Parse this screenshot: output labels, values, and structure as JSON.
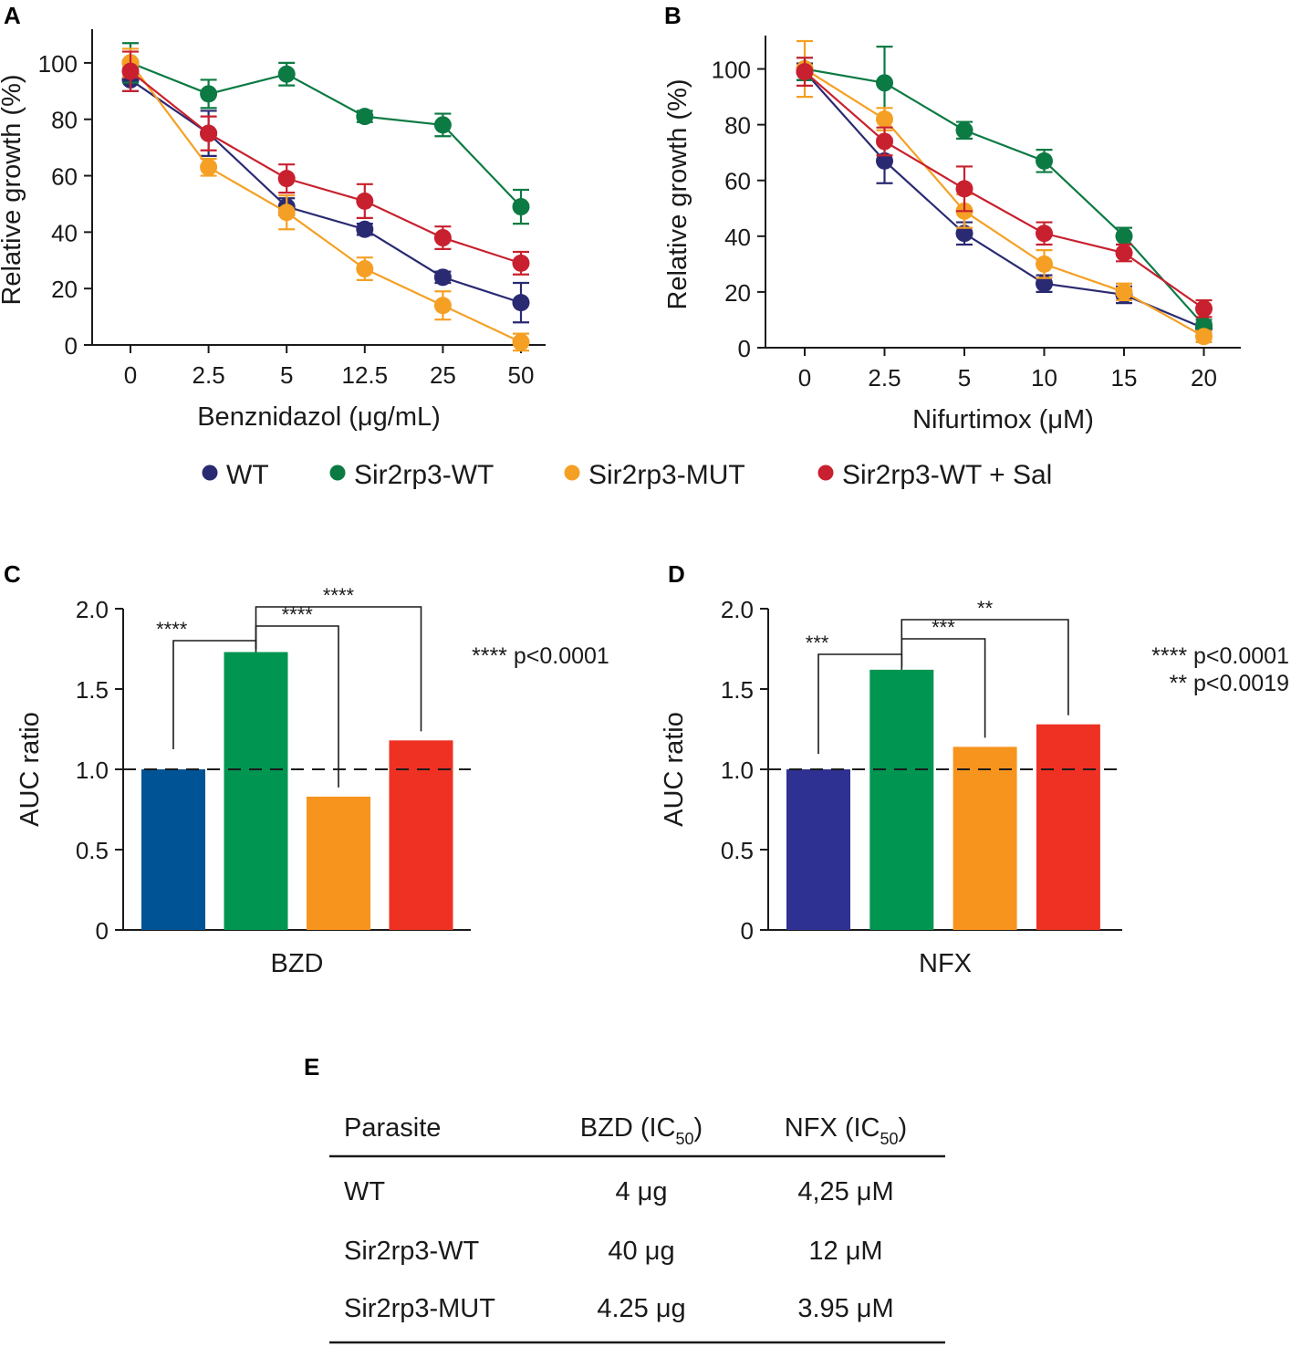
{
  "panel_labels": {
    "A": "A",
    "B": "B",
    "C": "C",
    "D": "D",
    "E": "E"
  },
  "colors": {
    "WT": "#2a2a72",
    "Sir2rp3-WT": "#0c7a43",
    "Sir2rp3-MUT": "#f5a024",
    "Sir2rp3-WT + Sal": "#c8202e"
  },
  "legend": [
    "WT",
    "Sir2rp3-WT",
    "Sir2rp3-MUT",
    "Sir2rp3-WT + Sal"
  ],
  "chart_data": [
    {
      "panel": "A",
      "type": "line",
      "xlabel": "Benznidazol (μg/mL)",
      "ylabel": "Relative growth (%)",
      "categories": [
        "0",
        "2.5",
        "5",
        "12.5",
        "25",
        "50"
      ],
      "ylim": [
        0,
        110
      ],
      "yticks": [
        "0",
        "20",
        "40",
        "60",
        "80",
        "100"
      ],
      "series": [
        {
          "name": "WT",
          "values": [
            94,
            75,
            49,
            41,
            24,
            15
          ],
          "errors": [
            4,
            8,
            3,
            2,
            2,
            7
          ]
        },
        {
          "name": "Sir2rp3-WT",
          "values": [
            100,
            89,
            96,
            81,
            78,
            49
          ],
          "errors": [
            7,
            5,
            4,
            2,
            4,
            6
          ]
        },
        {
          "name": "Sir2rp3-MUT",
          "values": [
            100,
            63,
            47,
            27,
            14,
            1
          ],
          "errors": [
            5,
            3,
            6,
            4,
            5,
            3
          ]
        },
        {
          "name": "Sir2rp3-WT + Sal",
          "values": [
            97,
            75,
            59,
            51,
            38,
            29
          ],
          "errors": [
            7,
            6,
            5,
            6,
            4,
            4
          ]
        }
      ]
    },
    {
      "panel": "B",
      "type": "line",
      "xlabel": "Nifurtimox (μM)",
      "ylabel": "Relative growth (%)",
      "categories": [
        "0",
        "2.5",
        "5",
        "10",
        "15",
        "20"
      ],
      "ylim": [
        0,
        110
      ],
      "yticks": [
        "0",
        "20",
        "40",
        "60",
        "80",
        "100"
      ],
      "series": [
        {
          "name": "WT",
          "values": [
            99,
            67,
            41,
            23,
            19,
            7
          ],
          "errors": [
            3,
            8,
            4,
            3,
            3,
            2
          ]
        },
        {
          "name": "Sir2rp3-WT",
          "values": [
            100,
            95,
            78,
            67,
            40,
            8
          ],
          "errors": [
            4,
            13,
            3,
            4,
            3,
            2
          ]
        },
        {
          "name": "Sir2rp3-MUT",
          "values": [
            100,
            82,
            49,
            30,
            20,
            4
          ],
          "errors": [
            10,
            4,
            6,
            5,
            3,
            2
          ]
        },
        {
          "name": "Sir2rp3-WT + Sal",
          "values": [
            99,
            74,
            57,
            41,
            34,
            14
          ],
          "errors": [
            5,
            5,
            8,
            4,
            3,
            3
          ]
        }
      ]
    },
    {
      "panel": "C",
      "type": "bar",
      "xlabel": "BZD",
      "ylabel": "AUC ratio",
      "categories": [
        "WT",
        "Sir2rp3-WT",
        "Sir2rp3-MUT",
        "Sir2rp3-WT + Sal"
      ],
      "values": [
        1.0,
        1.73,
        0.83,
        1.18
      ],
      "bar_colors": [
        "#005394",
        "#009551",
        "#f7941d",
        "#ee3123"
      ],
      "reference_line": 1.0,
      "ylim": [
        0,
        2.0
      ],
      "yticks": [
        "0",
        "0.5",
        "1.0",
        "1.5",
        "2.0"
      ],
      "comparisons": [
        {
          "between": [
            "WT",
            "Sir2rp3-WT"
          ],
          "label": "****"
        },
        {
          "between": [
            "Sir2rp3-WT",
            "Sir2rp3-MUT"
          ],
          "label": "****"
        },
        {
          "between": [
            "Sir2rp3-WT",
            "Sir2rp3-WT + Sal"
          ],
          "label": "****"
        }
      ],
      "notes": [
        "**** p<0.0001"
      ]
    },
    {
      "panel": "D",
      "type": "bar",
      "xlabel": "NFX",
      "ylabel": "AUC ratio",
      "categories": [
        "WT",
        "Sir2rp3-WT",
        "Sir2rp3-MUT",
        "Sir2rp3-WT + Sal"
      ],
      "values": [
        1.0,
        1.62,
        1.14,
        1.28
      ],
      "bar_colors": [
        "#2e3192",
        "#009551",
        "#f7941d",
        "#ee3123"
      ],
      "reference_line": 1.0,
      "ylim": [
        0,
        2.0
      ],
      "yticks": [
        "0",
        "0.5",
        "1.0",
        "1.5",
        "2.0"
      ],
      "comparisons": [
        {
          "between": [
            "WT",
            "Sir2rp3-WT"
          ],
          "label": "***"
        },
        {
          "between": [
            "Sir2rp3-WT",
            "Sir2rp3-MUT"
          ],
          "label": "***"
        },
        {
          "between": [
            "Sir2rp3-WT",
            "Sir2rp3-WT + Sal"
          ],
          "label": "**"
        }
      ],
      "notes": [
        "**** p<0.0001",
        "** p<0.0019"
      ]
    },
    {
      "panel": "E",
      "type": "table",
      "columns": [
        {
          "text": "Parasite",
          "sub": ""
        },
        {
          "text": "BZD (IC",
          "sub": "50",
          "close": ")"
        },
        {
          "text": "NFX (IC",
          "sub": "50",
          "close": ")"
        }
      ],
      "rows": [
        [
          "WT",
          "4 μg",
          "4,25 μM"
        ],
        [
          "Sir2rp3-WT",
          "40 μg",
          "12 μM"
        ],
        [
          "Sir2rp3-MUT",
          "4.25 μg",
          "3.95 μM"
        ]
      ]
    }
  ]
}
